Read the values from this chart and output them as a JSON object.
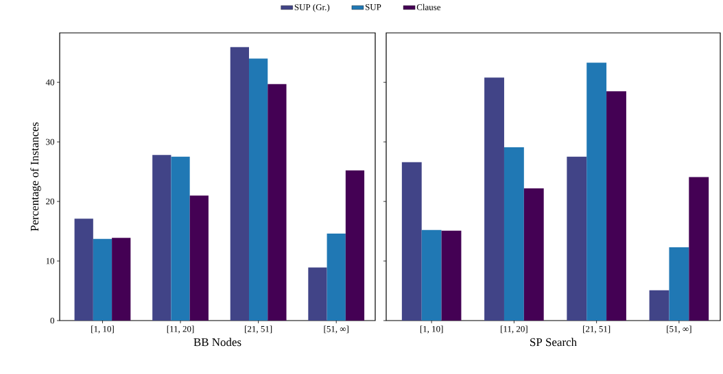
{
  "chart_data": [
    {
      "type": "bar",
      "xlabel": "BB Nodes",
      "ylabel": "Percentage of Instances",
      "categories": [
        "[1, 10]",
        "[11, 20]",
        "[21, 51]",
        "[51, ∞]"
      ],
      "ylim": [
        0,
        48.3
      ],
      "yticks": [
        0,
        10,
        20,
        30,
        40
      ],
      "legend": "top",
      "series": [
        {
          "name": "SUP (Gr.)",
          "color": "#414487",
          "values": [
            17.1,
            27.8,
            45.9,
            8.9
          ]
        },
        {
          "name": "SUP",
          "color": "#2078b4",
          "values": [
            13.7,
            27.5,
            44.0,
            14.6
          ]
        },
        {
          "name": "Clause",
          "color": "#440154",
          "values": [
            13.9,
            21.0,
            39.7,
            25.2
          ]
        }
      ]
    },
    {
      "type": "bar",
      "xlabel": "SP Search",
      "categories": [
        "[1, 10]",
        "[11, 20]",
        "[21, 51]",
        "[51, ∞]"
      ],
      "ylim": [
        0,
        48.3
      ],
      "yticks": [
        0,
        10,
        20,
        30,
        40
      ],
      "tick_labels": "x",
      "series": [
        {
          "color": "#414487",
          "values": [
            26.6,
            40.8,
            27.5,
            5.1
          ]
        },
        {
          "color": "#2078b4",
          "values": [
            15.2,
            29.1,
            43.3,
            12.3
          ]
        },
        {
          "color": "#440154",
          "values": [
            15.1,
            22.2,
            38.5,
            24.1
          ]
        }
      ]
    }
  ]
}
